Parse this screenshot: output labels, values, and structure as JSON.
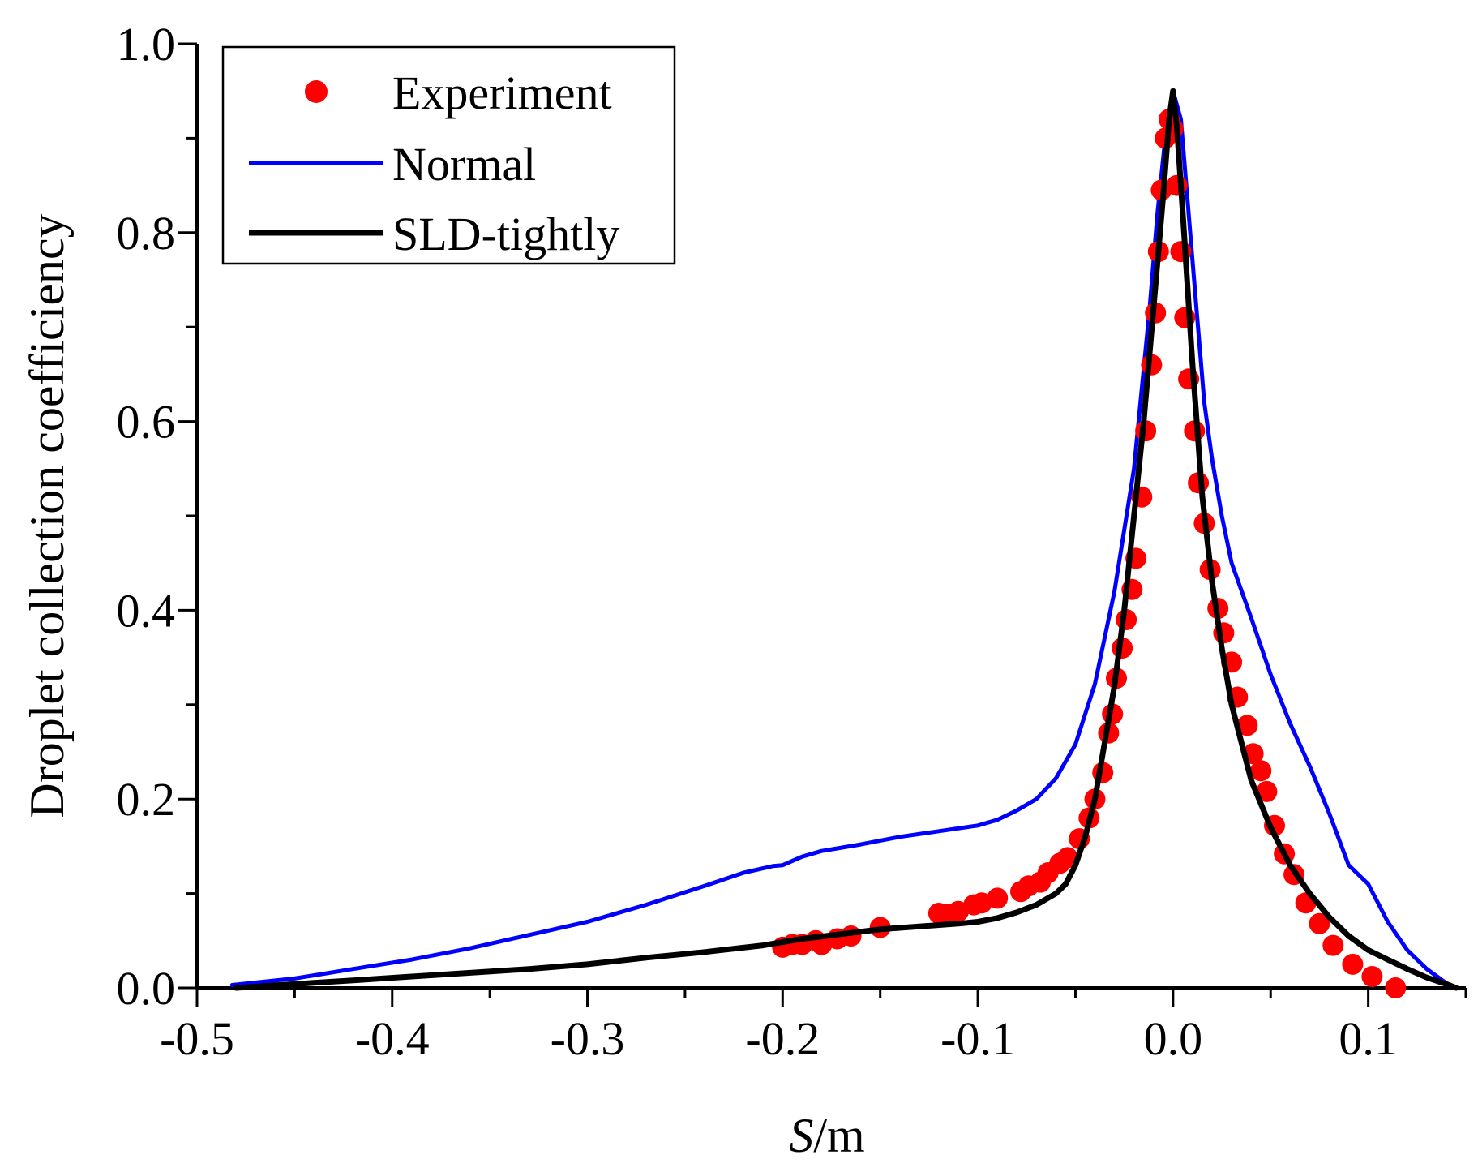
{
  "chart_data": {
    "type": "line",
    "title": "",
    "xlabel_italic": "S",
    "xlabel_unit": "/m",
    "ylabel": "Droplet collection coefficiency",
    "xlim": [
      -0.5,
      0.15
    ],
    "ylim": [
      0.0,
      1.0
    ],
    "x_ticks": [
      -0.5,
      -0.4,
      -0.3,
      -0.2,
      -0.1,
      0.0,
      0.1
    ],
    "x_tick_labels": [
      "-0.5",
      "-0.4",
      "-0.3",
      "-0.2",
      "-0.1",
      "0.0",
      "0.1"
    ],
    "y_ticks": [
      0.0,
      0.2,
      0.4,
      0.6,
      0.8,
      1.0
    ],
    "y_tick_labels": [
      "0.0",
      "0.2",
      "0.4",
      "0.6",
      "0.8",
      "1.0"
    ],
    "legend_position": "top-left",
    "series": [
      {
        "name": "Experiment",
        "kind": "scatter",
        "color": "#ff0000",
        "x": [
          -0.2,
          -0.195,
          -0.19,
          -0.183,
          -0.18,
          -0.172,
          -0.165,
          -0.15,
          -0.12,
          -0.115,
          -0.11,
          -0.102,
          -0.098,
          -0.09,
          -0.078,
          -0.074,
          -0.068,
          -0.064,
          -0.058,
          -0.054,
          -0.048,
          -0.043,
          -0.04,
          -0.036,
          -0.033,
          -0.031,
          -0.029,
          -0.026,
          -0.024,
          -0.021,
          -0.019,
          -0.016,
          -0.014,
          -0.011,
          -0.009,
          -0.0075,
          -0.006,
          -0.004,
          -0.002,
          0.0,
          0.002,
          0.004,
          0.006,
          0.008,
          0.011,
          0.013,
          0.016,
          0.019,
          0.023,
          0.026,
          0.03,
          0.033,
          0.038,
          0.041,
          0.045,
          0.048,
          0.052,
          0.057,
          0.062,
          0.068,
          0.075,
          0.082,
          0.092,
          0.102,
          0.114
        ],
        "y": [
          0.043,
          0.046,
          0.046,
          0.05,
          0.046,
          0.052,
          0.055,
          0.064,
          0.079,
          0.078,
          0.081,
          0.088,
          0.09,
          0.095,
          0.102,
          0.108,
          0.112,
          0.122,
          0.132,
          0.138,
          0.158,
          0.18,
          0.2,
          0.228,
          0.27,
          0.29,
          0.328,
          0.36,
          0.39,
          0.422,
          0.455,
          0.52,
          0.59,
          0.66,
          0.715,
          0.78,
          0.845,
          0.9,
          0.92,
          0.91,
          0.85,
          0.78,
          0.71,
          0.645,
          0.59,
          0.535,
          0.492,
          0.443,
          0.402,
          0.376,
          0.345,
          0.308,
          0.278,
          0.248,
          0.23,
          0.208,
          0.172,
          0.142,
          0.12,
          0.09,
          0.068,
          0.045,
          0.025,
          0.012,
          0.0
        ]
      },
      {
        "name": "Normal",
        "kind": "line",
        "color": "#0000ff",
        "x": [
          -0.482,
          -0.45,
          -0.42,
          -0.39,
          -0.36,
          -0.33,
          -0.3,
          -0.27,
          -0.24,
          -0.22,
          -0.205,
          -0.2,
          -0.19,
          -0.18,
          -0.16,
          -0.14,
          -0.12,
          -0.1,
          -0.09,
          -0.08,
          -0.07,
          -0.06,
          -0.05,
          -0.04,
          -0.03,
          -0.02,
          -0.012,
          -0.008,
          -0.004,
          0.0,
          0.004,
          0.008,
          0.012,
          0.016,
          0.02,
          0.025,
          0.03,
          0.04,
          0.05,
          0.06,
          0.07,
          0.08,
          0.09,
          0.1,
          0.11,
          0.12,
          0.13,
          0.14,
          0.145
        ],
        "y": [
          0.003,
          0.01,
          0.02,
          0.03,
          0.042,
          0.056,
          0.07,
          0.088,
          0.108,
          0.122,
          0.129,
          0.13,
          0.139,
          0.145,
          0.152,
          0.16,
          0.166,
          0.172,
          0.178,
          0.188,
          0.2,
          0.222,
          0.258,
          0.322,
          0.42,
          0.55,
          0.72,
          0.82,
          0.9,
          0.95,
          0.92,
          0.82,
          0.72,
          0.62,
          0.56,
          0.5,
          0.45,
          0.392,
          0.332,
          0.28,
          0.235,
          0.185,
          0.13,
          0.11,
          0.07,
          0.04,
          0.02,
          0.005,
          0.0
        ]
      },
      {
        "name": "SLD-tightly",
        "kind": "line",
        "color": "#000000",
        "x": [
          -0.48,
          -0.45,
          -0.42,
          -0.39,
          -0.36,
          -0.33,
          -0.3,
          -0.27,
          -0.24,
          -0.21,
          -0.19,
          -0.17,
          -0.15,
          -0.13,
          -0.11,
          -0.1,
          -0.09,
          -0.08,
          -0.07,
          -0.06,
          -0.055,
          -0.05,
          -0.045,
          -0.04,
          -0.035,
          -0.03,
          -0.025,
          -0.02,
          -0.015,
          -0.01,
          -0.005,
          -0.002,
          0.0,
          0.002,
          0.005,
          0.01,
          0.015,
          0.02,
          0.025,
          0.03,
          0.04,
          0.05,
          0.06,
          0.07,
          0.08,
          0.09,
          0.1,
          0.11,
          0.12,
          0.13,
          0.14,
          0.145
        ],
        "y": [
          0.0,
          0.004,
          0.008,
          0.012,
          0.016,
          0.02,
          0.025,
          0.032,
          0.038,
          0.045,
          0.052,
          0.057,
          0.062,
          0.065,
          0.068,
          0.07,
          0.074,
          0.08,
          0.088,
          0.1,
          0.11,
          0.13,
          0.16,
          0.2,
          0.26,
          0.32,
          0.4,
          0.5,
          0.6,
          0.72,
          0.84,
          0.92,
          0.95,
          0.91,
          0.82,
          0.66,
          0.52,
          0.43,
          0.36,
          0.3,
          0.22,
          0.17,
          0.13,
          0.1,
          0.075,
          0.055,
          0.04,
          0.03,
          0.02,
          0.011,
          0.004,
          0.0
        ]
      }
    ]
  }
}
